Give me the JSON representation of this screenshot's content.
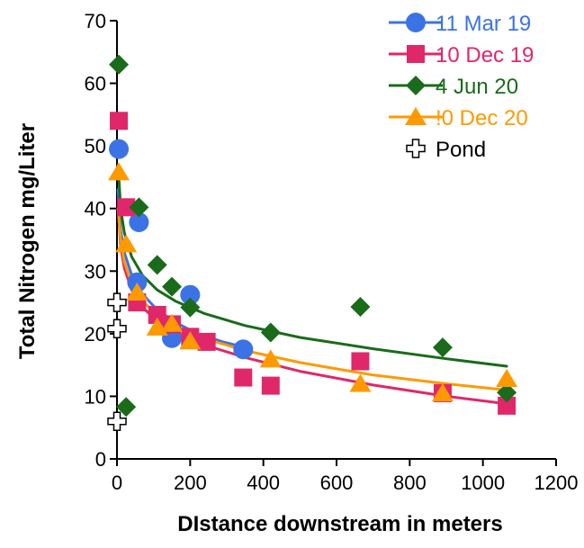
{
  "chart_data": {
    "type": "scatter",
    "title": "",
    "xlabel": "DIstance downstream in meters",
    "ylabel": "Total Nitrogen mg/Liter",
    "xlim": [
      0,
      1200
    ],
    "ylim": [
      0,
      70
    ],
    "xticks": [
      "0",
      "200",
      "400",
      "600",
      "800",
      "1000",
      "1200"
    ],
    "yticks": [
      "0",
      "10",
      "20",
      "30",
      "40",
      "50",
      "60",
      "70"
    ],
    "grid": false,
    "legend_position": "top-right",
    "series": [
      {
        "name": "11 Mar 19",
        "marker": "circle",
        "color": "#3b73e6",
        "points": [
          [
            5,
            49.5
          ],
          [
            60,
            37.8
          ],
          [
            55,
            28.2
          ],
          [
            150,
            19.3
          ],
          [
            200,
            26.2
          ],
          [
            345,
            17.5
          ]
        ],
        "trend": [
          [
            3,
            43
          ],
          [
            10,
            36.5
          ],
          [
            20,
            33
          ],
          [
            40,
            29.4
          ],
          [
            70,
            26.3
          ],
          [
            110,
            23.8
          ],
          [
            160,
            21.8
          ],
          [
            220,
            20
          ],
          [
            290,
            18.7
          ],
          [
            350,
            17.8
          ]
        ]
      },
      {
        "name": "10 Dec 19",
        "marker": "square",
        "color": "#e0276a",
        "points": [
          [
            5,
            54
          ],
          [
            25,
            40.2
          ],
          [
            55,
            25
          ],
          [
            110,
            23
          ],
          [
            150,
            21.5
          ],
          [
            200,
            19.5
          ],
          [
            245,
            18.7
          ],
          [
            345,
            13
          ],
          [
            420,
            11.7
          ],
          [
            665,
            15.6
          ],
          [
            890,
            10.5
          ],
          [
            1065,
            8.5
          ]
        ],
        "trend": [
          [
            3,
            40
          ],
          [
            10,
            34
          ],
          [
            20,
            30.5
          ],
          [
            40,
            27
          ],
          [
            70,
            24.2
          ],
          [
            110,
            22
          ],
          [
            160,
            20.2
          ],
          [
            240,
            18.2
          ],
          [
            350,
            16.2
          ],
          [
            500,
            14
          ],
          [
            700,
            11.8
          ],
          [
            900,
            10
          ],
          [
            1065,
            8.8
          ]
        ]
      },
      {
        "name": "4 Jun 20",
        "marker": "diamond",
        "color": "#1a6b1a",
        "points": [
          [
            5,
            63
          ],
          [
            25,
            8.3
          ],
          [
            60,
            40.2
          ],
          [
            110,
            31
          ],
          [
            150,
            27.5
          ],
          [
            200,
            24.2
          ],
          [
            420,
            20.2
          ],
          [
            665,
            24.3
          ],
          [
            890,
            17.8
          ],
          [
            1065,
            10.6
          ]
        ],
        "trend": [
          [
            3,
            47
          ],
          [
            10,
            40
          ],
          [
            20,
            36.2
          ],
          [
            40,
            32.3
          ],
          [
            70,
            29.3
          ],
          [
            110,
            27
          ],
          [
            160,
            25.2
          ],
          [
            240,
            23.2
          ],
          [
            350,
            21.3
          ],
          [
            500,
            19.4
          ],
          [
            700,
            17.6
          ],
          [
            900,
            16
          ],
          [
            1065,
            14.8
          ]
        ]
      },
      {
        "name": "!0 Dec 20",
        "marker": "triangle",
        "color": "#ff9900",
        "points": [
          [
            5,
            45.8
          ],
          [
            25,
            34.3
          ],
          [
            55,
            26.6
          ],
          [
            110,
            21
          ],
          [
            150,
            21.6
          ],
          [
            200,
            18.8
          ],
          [
            420,
            15.9
          ],
          [
            665,
            12
          ],
          [
            890,
            10.5
          ],
          [
            1065,
            12.8
          ]
        ],
        "trend": [
          [
            3,
            40
          ],
          [
            10,
            35
          ],
          [
            20,
            31.5
          ],
          [
            40,
            28
          ],
          [
            70,
            25.2
          ],
          [
            110,
            23
          ],
          [
            160,
            21.2
          ],
          [
            240,
            19.2
          ],
          [
            350,
            17.3
          ],
          [
            500,
            15.4
          ],
          [
            700,
            13.4
          ],
          [
            900,
            12
          ],
          [
            1065,
            11
          ]
        ]
      },
      {
        "name": "Pond",
        "marker": "cross",
        "color": "#000000",
        "points": [
          [
            0,
            25
          ],
          [
            0,
            20.8
          ],
          [
            0,
            6
          ]
        ],
        "trend": []
      }
    ]
  }
}
